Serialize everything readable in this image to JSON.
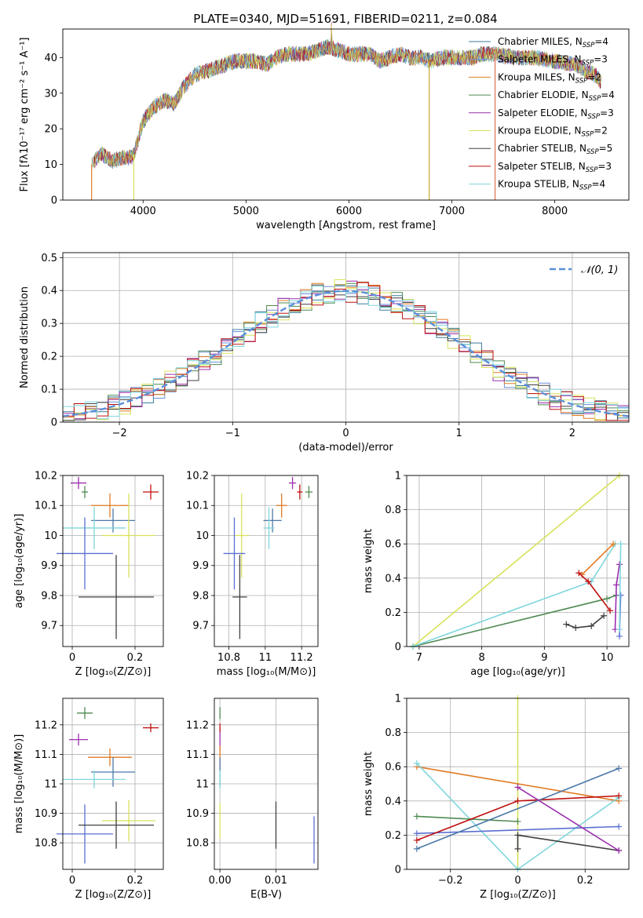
{
  "figure_title": "PLATE=0340, MJD=51691, FIBERID=0211, z=0.084",
  "colors": {
    "models": [
      "#4c78a8",
      "#5b6fd0",
      "#e07b24",
      "#4e8a52",
      "#9b2fae",
      "#d8e25a",
      "#404040",
      "#c01010",
      "#7fd6dc"
    ]
  },
  "chart_data": [
    {
      "id": "spectrum",
      "type": "line",
      "title": "PLATE=0340, MJD=51691, FIBERID=0211, z=0.084",
      "xlabel": "wavelength [Angstrom, rest frame]",
      "ylabel": "Flux [fλ10⁻¹⁷ erg cm⁻² s⁻¹ A⁻¹]",
      "xlim": [
        3220,
        8720
      ],
      "ylim": [
        0,
        48
      ],
      "xticks": [
        4000,
        5000,
        6000,
        7000,
        8000
      ],
      "yticks": [
        0,
        10,
        20,
        30,
        40
      ],
      "grid": false,
      "legend_position": "top-right",
      "legend": [
        {
          "label": "Chabrier MILES, N",
          "sub": "SSP",
          "tail": "=4",
          "color": "#3a7ea0"
        },
        {
          "label": "Salpeter MILES, N",
          "sub": "SSP",
          "tail": "=3",
          "color": "#6b8fd6"
        },
        {
          "label": "Kroupa MILES, N",
          "sub": "SSP",
          "tail": "=2",
          "color": "#e07b24"
        },
        {
          "label": "Chabrier ELODIE, N",
          "sub": "SSP",
          "tail": "=4",
          "color": "#4e8a52"
        },
        {
          "label": "Salpeter ELODIE, N",
          "sub": "SSP",
          "tail": "=3",
          "color": "#9b2fae"
        },
        {
          "label": "Kroupa ELODIE, N",
          "sub": "SSP",
          "tail": "=2",
          "color": "#d8e25a"
        },
        {
          "label": "Chabrier STELIB, N",
          "sub": "SSP",
          "tail": "=5",
          "color": "#404040"
        },
        {
          "label": "Salpeter STELIB, N",
          "sub": "SSP",
          "tail": "=3",
          "color": "#c01010"
        },
        {
          "label": "Kroupa STELIB, N",
          "sub": "SSP",
          "tail": "=4",
          "color": "#7fd6dc"
        }
      ],
      "continuum": [
        [
          3500,
          10
        ],
        [
          3600,
          13
        ],
        [
          3700,
          11
        ],
        [
          3800,
          12
        ],
        [
          3900,
          12
        ],
        [
          3950,
          17
        ],
        [
          4000,
          22
        ],
        [
          4100,
          26
        ],
        [
          4200,
          28
        ],
        [
          4300,
          27
        ],
        [
          4400,
          32
        ],
        [
          4500,
          35
        ],
        [
          4600,
          36
        ],
        [
          4700,
          37
        ],
        [
          4800,
          38
        ],
        [
          4900,
          39
        ],
        [
          5000,
          39
        ],
        [
          5100,
          39
        ],
        [
          5200,
          38
        ],
        [
          5300,
          40
        ],
        [
          5400,
          41
        ],
        [
          5500,
          41
        ],
        [
          5600,
          41
        ],
        [
          5700,
          42
        ],
        [
          5800,
          43
        ],
        [
          5900,
          42
        ],
        [
          6000,
          41
        ],
        [
          6100,
          41
        ],
        [
          6200,
          41
        ],
        [
          6300,
          39
        ],
        [
          6400,
          40
        ],
        [
          6500,
          41
        ],
        [
          6600,
          40
        ],
        [
          6700,
          40
        ],
        [
          6800,
          39
        ],
        [
          6900,
          40
        ],
        [
          7000,
          40
        ],
        [
          7100,
          40
        ],
        [
          7200,
          40
        ],
        [
          7300,
          41
        ],
        [
          7400,
          41
        ],
        [
          7600,
          40
        ],
        [
          7800,
          40
        ],
        [
          8000,
          39
        ],
        [
          8200,
          38
        ],
        [
          8400,
          35
        ],
        [
          8450,
          33
        ]
      ],
      "dips": [
        [
          3500,
          0
        ],
        [
          3910,
          0
        ],
        [
          6780,
          0
        ],
        [
          7420,
          0
        ]
      ]
    },
    {
      "id": "residuals",
      "type": "histogram",
      "xlabel": "(data-model)/error",
      "ylabel": "Normed distribution",
      "xlim": [
        -2.5,
        2.5
      ],
      "ylim": [
        0,
        0.515
      ],
      "xticks": [
        -2,
        -1,
        0,
        1,
        2
      ],
      "yticks": [
        0.0,
        0.1,
        0.2,
        0.3,
        0.4,
        0.5
      ],
      "grid": true,
      "legend_position": "top-right",
      "legend": [
        {
          "label": "𝒩(0, 1)",
          "color": "#5b8fd9",
          "style": "dashed"
        }
      ],
      "bin_width": 0.1
    },
    {
      "id": "age-vs-Z",
      "type": "scatter",
      "xlabel": "Z [log₁₀(Z/Z⊙)]",
      "ylabel": "age  [log₁₀(age/yr)]",
      "xlim": [
        -0.03,
        0.29
      ],
      "ylim": [
        9.63,
        10.2
      ],
      "xticks": [
        0.0,
        0.2
      ],
      "yticks": [
        9.7,
        9.8,
        9.9,
        10.0,
        10.1,
        10.2
      ],
      "grid": true,
      "points": [
        {
          "x": 0.04,
          "y": 10.145,
          "xerr": 0.01,
          "yerr": 0.02,
          "c": 4
        },
        {
          "x": 0.02,
          "y": 10.175,
          "xerr": 0.025,
          "yerr": 0.02,
          "c": 5
        },
        {
          "x": 0.12,
          "y": 10.1,
          "xerr": 0.06,
          "yerr": 0.04,
          "c": 3
        },
        {
          "x": 0.25,
          "y": 10.145,
          "xerr": 0.025,
          "yerr": 0.025,
          "c": 8
        },
        {
          "x": 0.13,
          "y": 10.05,
          "xerr": 0.07,
          "yerr": 0.04,
          "c": 1
        },
        {
          "x": 0.07,
          "y": 10.025,
          "xerr": 0.1,
          "yerr": 0.07,
          "c": 9
        },
        {
          "x": 0.18,
          "y": 10.0,
          "xerr": 0.085,
          "yerr": 0.14,
          "c": 6
        },
        {
          "x": 0.04,
          "y": 9.94,
          "xerr": 0.09,
          "yerr": 0.12,
          "c": 2
        },
        {
          "x": 0.14,
          "y": 9.795,
          "xerr": 0.12,
          "yerr": 0.14,
          "c": 7
        }
      ]
    },
    {
      "id": "age-vs-mass",
      "type": "scatter",
      "xlabel": "mass [log₁₀(M/M⊙)]",
      "ylabel": "",
      "xlim": [
        10.72,
        11.29
      ],
      "ylim": [
        9.63,
        10.2
      ],
      "xticks": [
        10.8,
        11.0,
        11.2
      ],
      "yticks": [
        9.7,
        9.8,
        9.9,
        10.0,
        10.1,
        10.2
      ],
      "grid": true,
      "points": [
        {
          "x": 11.24,
          "y": 10.145,
          "xerr": 0.02,
          "yerr": 0.02,
          "c": 4
        },
        {
          "x": 11.15,
          "y": 10.175,
          "xerr": 0.02,
          "yerr": 0.02,
          "c": 5
        },
        {
          "x": 11.09,
          "y": 10.1,
          "xerr": 0.03,
          "yerr": 0.04,
          "c": 3
        },
        {
          "x": 11.19,
          "y": 10.145,
          "xerr": 0.015,
          "yerr": 0.025,
          "c": 8
        },
        {
          "x": 11.04,
          "y": 10.05,
          "xerr": 0.05,
          "yerr": 0.04,
          "c": 1
        },
        {
          "x": 11.02,
          "y": 10.025,
          "xerr": 0.03,
          "yerr": 0.07,
          "c": 9
        },
        {
          "x": 10.87,
          "y": 10.0,
          "xerr": 0.04,
          "yerr": 0.14,
          "c": 6
        },
        {
          "x": 10.83,
          "y": 9.94,
          "xerr": 0.06,
          "yerr": 0.12,
          "c": 2
        },
        {
          "x": 10.86,
          "y": 9.795,
          "xerr": 0.04,
          "yerr": 0.14,
          "c": 7
        }
      ]
    },
    {
      "id": "weight-vs-age",
      "type": "line",
      "xlabel": "age  [log₁₀(age/yr)]",
      "ylabel": "mass weight",
      "xlim": [
        6.8,
        10.35
      ],
      "ylim": [
        0,
        1.0
      ],
      "xticks": [
        7,
        8,
        9,
        10
      ],
      "yticks": [
        0.0,
        0.2,
        0.4,
        0.6,
        0.8,
        1.0
      ],
      "grid": true
    },
    {
      "id": "mass-vs-Z",
      "type": "scatter",
      "xlabel": "Z [log₁₀(Z/Z⊙)]",
      "ylabel": "mass [log₁₀(M/M⊙)]",
      "xlim": [
        -0.03,
        0.29
      ],
      "ylim": [
        10.71,
        11.29
      ],
      "xticks": [
        0.0,
        0.2
      ],
      "yticks": [
        10.8,
        10.9,
        11.0,
        11.1,
        11.2
      ],
      "grid": true,
      "points": [
        {
          "x": 0.04,
          "y": 11.24,
          "xerr": 0.025,
          "yerr": 0.02,
          "c": 4
        },
        {
          "x": 0.02,
          "y": 11.15,
          "xerr": 0.03,
          "yerr": 0.02,
          "c": 5
        },
        {
          "x": 0.12,
          "y": 11.09,
          "xerr": 0.07,
          "yerr": 0.03,
          "c": 3
        },
        {
          "x": 0.25,
          "y": 11.19,
          "xerr": 0.025,
          "yerr": 0.015,
          "c": 8
        },
        {
          "x": 0.13,
          "y": 11.04,
          "xerr": 0.07,
          "yerr": 0.05,
          "c": 1
        },
        {
          "x": 0.07,
          "y": 11.015,
          "xerr": 0.1,
          "yerr": 0.03,
          "c": 9
        },
        {
          "x": 0.18,
          "y": 10.875,
          "xerr": 0.085,
          "yerr": 0.07,
          "c": 6
        },
        {
          "x": 0.04,
          "y": 10.83,
          "xerr": 0.09,
          "yerr": 0.1,
          "c": 2
        },
        {
          "x": 0.14,
          "y": 10.86,
          "xerr": 0.12,
          "yerr": 0.08,
          "c": 7
        }
      ]
    },
    {
      "id": "mass-vs-EBV",
      "type": "scatter",
      "xlabel": "E(B-V)",
      "ylabel": "",
      "xlim": [
        -0.001,
        0.0175
      ],
      "ylim": [
        10.71,
        11.29
      ],
      "xticks": [
        0.0,
        0.01
      ],
      "yticks": [
        10.8,
        10.9,
        11.0,
        11.1,
        11.2
      ],
      "grid": true,
      "points": [
        {
          "x": 0.0,
          "y": 11.24,
          "xerr": 0,
          "yerr": 0.02,
          "c": 4
        },
        {
          "x": 0.0,
          "y": 11.15,
          "xerr": 0,
          "yerr": 0.04,
          "c": 5
        },
        {
          "x": 0.0,
          "y": 11.09,
          "xerr": 0,
          "yerr": 0.04,
          "c": 3
        },
        {
          "x": 0.0,
          "y": 11.19,
          "xerr": 0,
          "yerr": 0.015,
          "c": 8
        },
        {
          "x": 0.0,
          "y": 11.04,
          "xerr": 0,
          "yerr": 0.05,
          "c": 1
        },
        {
          "x": 0.0,
          "y": 11.015,
          "xerr": 0,
          "yerr": 0.03,
          "c": 9
        },
        {
          "x": 0.0,
          "y": 10.875,
          "xerr": 0,
          "yerr": 0.06,
          "c": 6
        },
        {
          "x": 0.0168,
          "y": 10.81,
          "xerr": 0,
          "yerr": 0.08,
          "c": 2
        },
        {
          "x": 0.01,
          "y": 10.86,
          "xerr": 0,
          "yerr": 0.08,
          "c": 7
        }
      ]
    },
    {
      "id": "weight-vs-Z",
      "type": "line",
      "xlabel": "Z [log₁₀(Z/Z⊙)]",
      "ylabel": "mass weight",
      "xlim": [
        -0.33,
        0.33
      ],
      "ylim": [
        0,
        1.0
      ],
      "xticks": [
        -0.2,
        0.0,
        0.2
      ],
      "yticks": [
        0.0,
        0.2,
        0.4,
        0.6,
        0.8,
        1.0
      ],
      "grid": true
    }
  ]
}
